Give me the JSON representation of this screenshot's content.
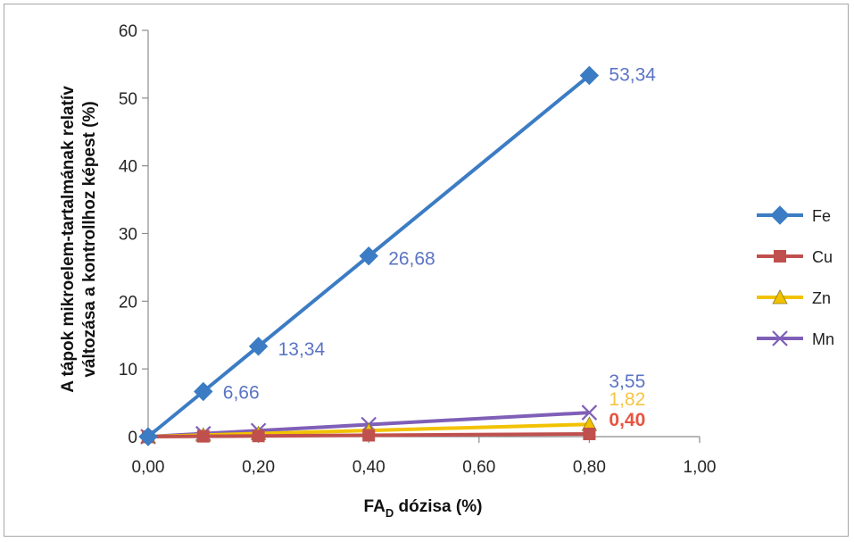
{
  "chart_data": {
    "type": "line",
    "title": "",
    "xlabel_main": "FA",
    "xlabel_sub": "D",
    "xlabel_rest": " dózisa (%)",
    "ylabel_line1": "A tápok mikroelem-tartalmának relatív",
    "ylabel_line2": "változása  a kontrollhoz képest (%)",
    "xlim": [
      0,
      1
    ],
    "ylim": [
      0,
      60
    ],
    "x_ticks": [
      "0,00",
      "0,20",
      "0,40",
      "0,60",
      "0,80",
      "1,00"
    ],
    "y_ticks": [
      "0",
      "10",
      "20",
      "30",
      "40",
      "50",
      "60"
    ],
    "grid": false,
    "legend_position": "right",
    "series": [
      {
        "name": "Fe",
        "color": "#3b7cc4",
        "marker": "diamond",
        "x": [
          0,
          0.1,
          0.2,
          0.4,
          0.8
        ],
        "y": [
          0,
          6.66,
          13.34,
          26.68,
          53.34
        ]
      },
      {
        "name": "Cu",
        "color": "#c0504d",
        "marker": "square",
        "x": [
          0,
          0.1,
          0.2,
          0.4,
          0.8
        ],
        "y": [
          0,
          0.05,
          0.1,
          0.2,
          0.4
        ]
      },
      {
        "name": "Zn",
        "color": "#f2c200",
        "marker": "triangle",
        "x": [
          0,
          0.1,
          0.2,
          0.4,
          0.8
        ],
        "y": [
          0,
          0.23,
          0.46,
          0.91,
          1.82
        ]
      },
      {
        "name": "Mn",
        "color": "#7f5fb7",
        "marker": "x",
        "x": [
          0,
          0.1,
          0.2,
          0.4,
          0.8
        ],
        "y": [
          0,
          0.44,
          0.89,
          1.78,
          3.55
        ]
      }
    ],
    "data_labels": [
      {
        "series": "Fe",
        "text": "53,34",
        "x": 0.8,
        "y": 53.34,
        "color": "#5b74c4",
        "bold": false
      },
      {
        "series": "Fe",
        "text": "26,68",
        "x": 0.4,
        "y": 26.68,
        "color": "#5b74c4",
        "bold": false
      },
      {
        "series": "Fe",
        "text": "13,34",
        "x": 0.2,
        "y": 13.34,
        "color": "#5b74c4",
        "bold": false
      },
      {
        "series": "Fe",
        "text": "6,66",
        "x": 0.1,
        "y": 6.66,
        "color": "#5b74c4",
        "bold": false
      },
      {
        "series": "Mn",
        "text": "3,55",
        "x": 0.8,
        "y": 3.55,
        "color": "#5b74c4",
        "bold": false
      },
      {
        "series": "Zn",
        "text": "1,82",
        "x": 0.8,
        "y": 1.82,
        "color": "#f5c542",
        "bold": false
      },
      {
        "series": "Cu",
        "text": "0,40",
        "x": 0.8,
        "y": 0.4,
        "color": "#e8533f",
        "bold": true
      }
    ]
  }
}
